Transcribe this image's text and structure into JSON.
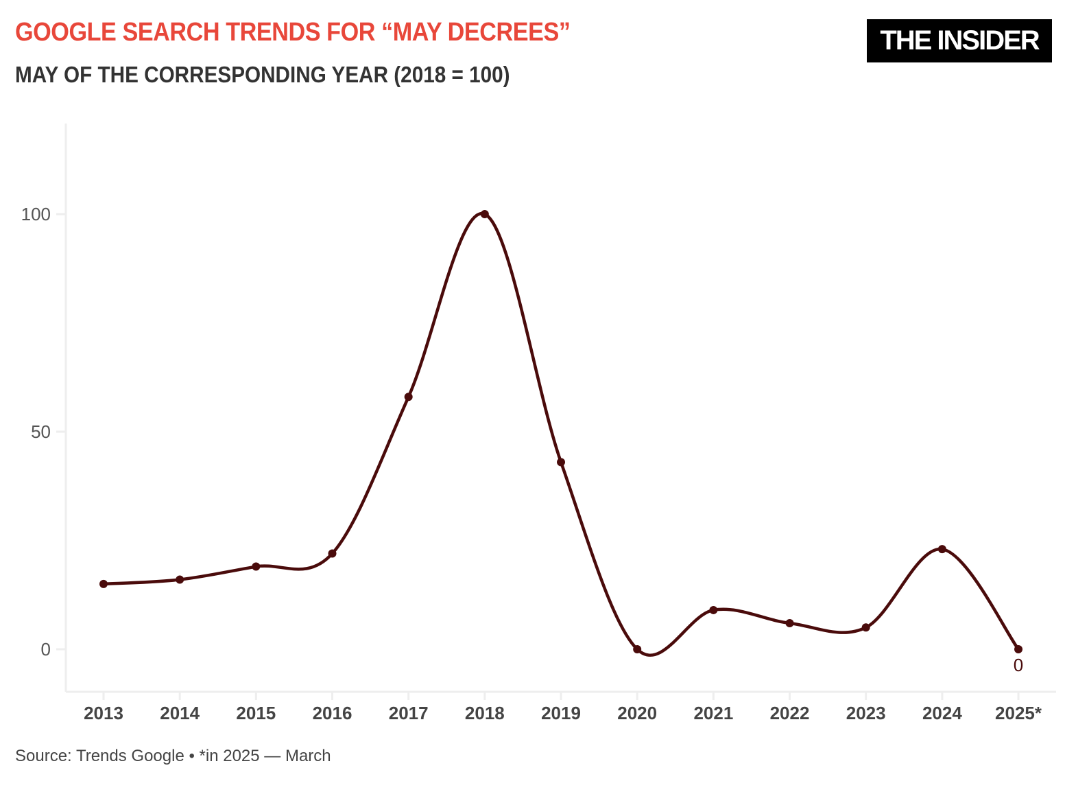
{
  "title": "GOOGLE SEARCH TRENDS FOR “MAY DECREES”",
  "subtitle": "MAY OF THE CORRESPONDING YEAR (2018 = 100)",
  "logo": "THE INSIDER",
  "source": "Source: Trends Google • *in 2025 — March",
  "colors": {
    "title": "#e8473a",
    "line": "#4a0b0b",
    "axis": "#eeeeee"
  },
  "chart_data": {
    "type": "line",
    "smooth": true,
    "categories": [
      "2013",
      "2014",
      "2015",
      "2016",
      "2017",
      "2018",
      "2019",
      "2020",
      "2021",
      "2022",
      "2023",
      "2024",
      "2025*"
    ],
    "values": [
      15,
      16,
      19,
      22,
      58,
      100,
      43,
      0,
      9,
      6,
      5,
      23,
      0
    ],
    "yticks": [
      0,
      50,
      100
    ],
    "ylim": [
      -10,
      121
    ],
    "grid": false,
    "annotations": [
      {
        "category": "2025*",
        "label": "0"
      }
    ]
  }
}
